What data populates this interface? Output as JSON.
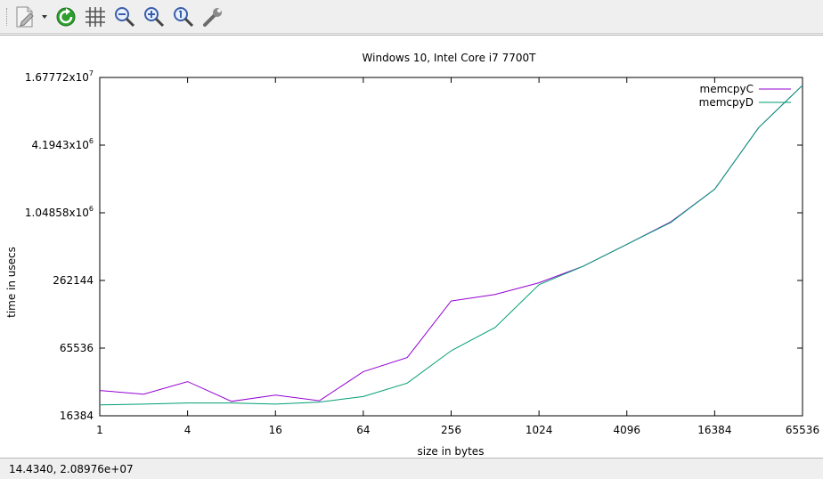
{
  "toolbar": {
    "buttons": [
      {
        "name": "export-icon"
      },
      {
        "name": "replot-icon"
      },
      {
        "name": "grid-icon"
      },
      {
        "name": "zoom-previous-icon"
      },
      {
        "name": "zoom-next-icon"
      },
      {
        "name": "autoscale-icon"
      },
      {
        "name": "settings-wrench-icon"
      }
    ]
  },
  "status": {
    "coordinates": "14.4340,  2.08976e+07"
  },
  "chart_data": {
    "type": "line",
    "title": "Windows 10, Intel Core i7 7700T",
    "xlabel": "size in bytes",
    "ylabel": "time in usecs",
    "x_scale": "log2",
    "y_scale": "log2",
    "xlim": [
      1,
      65536
    ],
    "ylim": [
      16384,
      16777216
    ],
    "x_ticks": [
      {
        "value": 1,
        "label": "1"
      },
      {
        "value": 4,
        "label": "4"
      },
      {
        "value": 16,
        "label": "16"
      },
      {
        "value": 64,
        "label": "64"
      },
      {
        "value": 256,
        "label": "256"
      },
      {
        "value": 1024,
        "label": "1024"
      },
      {
        "value": 4096,
        "label": "4096"
      },
      {
        "value": 16384,
        "label": "16384"
      },
      {
        "value": 65536,
        "label": "65536"
      }
    ],
    "y_ticks": [
      {
        "value": 16384,
        "label": "16384",
        "sup": ""
      },
      {
        "value": 65536,
        "label": "65536",
        "sup": ""
      },
      {
        "value": 262144,
        "label": "262144",
        "sup": ""
      },
      {
        "value": 1048576,
        "label": "1.04858x10",
        "sup": "6"
      },
      {
        "value": 4194304,
        "label": "4.1943x10",
        "sup": "6"
      },
      {
        "value": 16777216,
        "label": "1.67772x10",
        "sup": "7"
      }
    ],
    "legend_position": "top-right",
    "x": [
      1,
      2,
      4,
      8,
      16,
      32,
      64,
      128,
      256,
      512,
      1024,
      2048,
      4096,
      8192,
      16384,
      32768,
      65536
    ],
    "series": [
      {
        "name": "memcpyC",
        "color": "#9400d3",
        "values": [
          27500,
          25500,
          33000,
          22000,
          25000,
          22300,
          40500,
          54000,
          172000,
          197000,
          250000,
          350000,
          550000,
          870000,
          1700000,
          6000000,
          14300000
        ]
      },
      {
        "name": "memcpyD",
        "color": "#009e73",
        "values": [
          20500,
          20800,
          21300,
          21300,
          20800,
          21700,
          24300,
          32000,
          62000,
          100000,
          240000,
          350000,
          550000,
          860000,
          1700000,
          6000000,
          14300000
        ]
      }
    ]
  }
}
